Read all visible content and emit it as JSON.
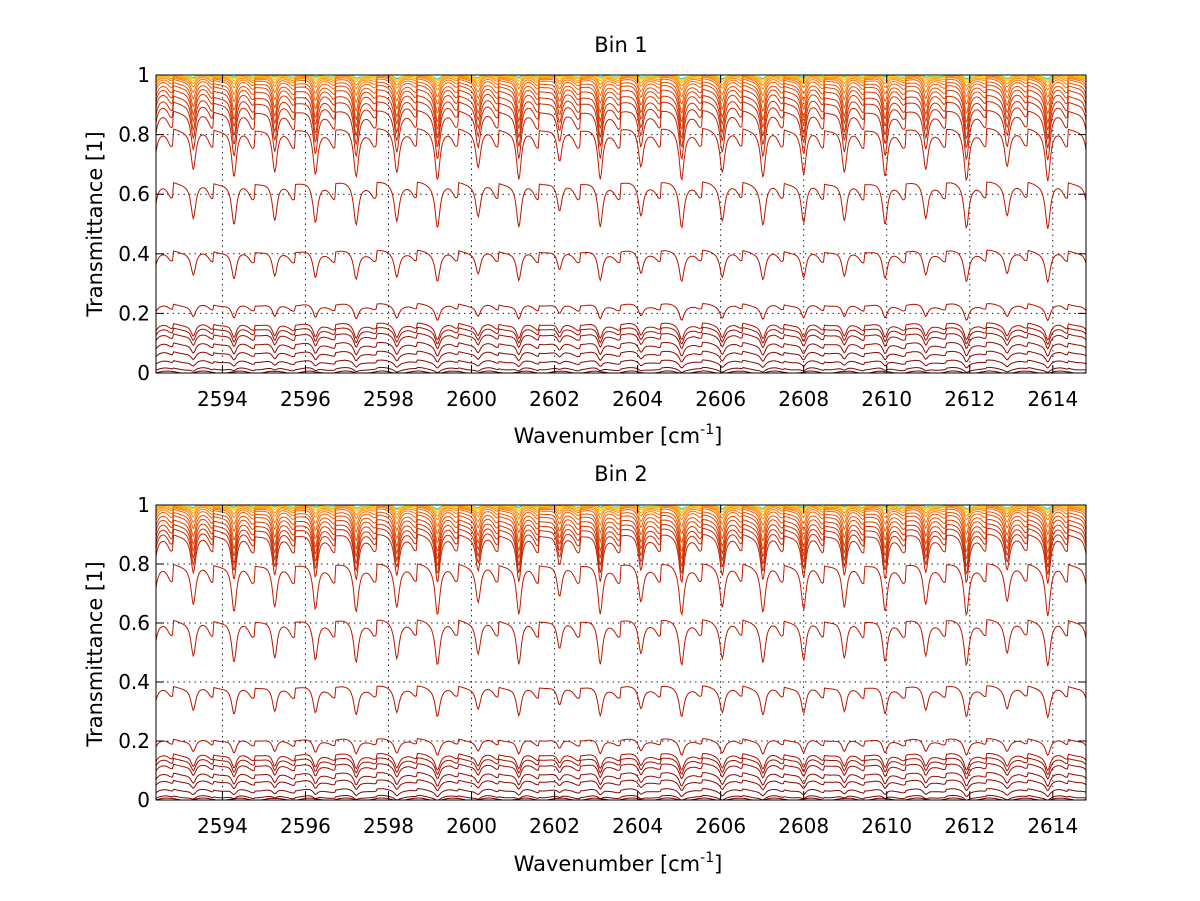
{
  "chart_data": [
    {
      "type": "line",
      "title": "Bin 1",
      "xlabel": "Wavenumber [cm",
      "xlabel_sup": "-1",
      "xlabel_close": "]",
      "ylabel": "Transmittance [1]",
      "xlim": [
        2592.4,
        2614.8
      ],
      "ylim": [
        0,
        1
      ],
      "grid": true,
      "x_ticks": [
        2594,
        2596,
        2598,
        2600,
        2602,
        2604,
        2606,
        2608,
        2610,
        2612,
        2614
      ],
      "x_tick_labels": [
        "2594",
        "2596",
        "2598",
        "2600",
        "2602",
        "2604",
        "2606",
        "2608",
        "2610",
        "2612",
        "2614"
      ],
      "y_ticks": [
        0,
        0.2,
        0.4,
        0.6,
        0.8,
        1
      ],
      "y_tick_labels": [
        "0",
        "0.2",
        "0.4",
        "0.6",
        "0.8",
        "1"
      ],
      "series_description": "Family of transmittance spectra; absorption line spacing approx. 0.98 cm^-1",
      "series": [
        {
          "name": "s01",
          "baseline": 1.0,
          "depth": 0.01,
          "color": "#00c8c8"
        },
        {
          "name": "s02",
          "baseline": 1.0,
          "depth": 0.015,
          "color": "#ffd200"
        },
        {
          "name": "s03",
          "baseline": 0.998,
          "depth": 0.02,
          "color": "#ffb400"
        },
        {
          "name": "s04",
          "baseline": 0.996,
          "depth": 0.03,
          "color": "#ff9600"
        },
        {
          "name": "s05",
          "baseline": 0.993,
          "depth": 0.04,
          "color": "#ff8200"
        },
        {
          "name": "s06",
          "baseline": 0.99,
          "depth": 0.06,
          "color": "#ff7000"
        },
        {
          "name": "s07",
          "baseline": 0.985,
          "depth": 0.08,
          "color": "#f06000"
        },
        {
          "name": "s08",
          "baseline": 0.975,
          "depth": 0.1,
          "color": "#e85000"
        },
        {
          "name": "s09",
          "baseline": 0.965,
          "depth": 0.12,
          "color": "#e04400"
        },
        {
          "name": "s10",
          "baseline": 0.95,
          "depth": 0.13,
          "color": "#d83800"
        },
        {
          "name": "s11",
          "baseline": 0.93,
          "depth": 0.14,
          "color": "#d03000"
        },
        {
          "name": "s12",
          "baseline": 0.91,
          "depth": 0.15,
          "color": "#c82800"
        },
        {
          "name": "s13",
          "baseline": 0.88,
          "depth": 0.16,
          "color": "#c02000"
        },
        {
          "name": "s14",
          "baseline": 0.82,
          "depth": 0.17,
          "color": "#c01a00"
        },
        {
          "name": "s15",
          "baseline": 0.64,
          "depth": 0.15,
          "color": "#b81800"
        },
        {
          "name": "s16",
          "baseline": 0.41,
          "depth": 0.1,
          "color": "#b41400"
        },
        {
          "name": "s17",
          "baseline": 0.23,
          "depth": 0.05,
          "color": "#b01200"
        },
        {
          "name": "s18",
          "baseline": 0.165,
          "depth": 0.05,
          "color": "#a81000"
        },
        {
          "name": "s19",
          "baseline": 0.15,
          "depth": 0.05,
          "color": "#a00e00"
        },
        {
          "name": "s20",
          "baseline": 0.13,
          "depth": 0.045,
          "color": "#980c00"
        },
        {
          "name": "s21",
          "baseline": 0.1,
          "depth": 0.04,
          "color": "#900a00"
        },
        {
          "name": "s22",
          "baseline": 0.07,
          "depth": 0.03,
          "color": "#880800"
        },
        {
          "name": "s23",
          "baseline": 0.04,
          "depth": 0.02,
          "color": "#800600"
        },
        {
          "name": "s24",
          "baseline": 0.015,
          "depth": 0.01,
          "color": "#780400"
        },
        {
          "name": "s25",
          "baseline": 0.003,
          "depth": 0.002,
          "color": "#700000"
        }
      ]
    },
    {
      "type": "line",
      "title": "Bin 2",
      "xlabel": "Wavenumber [cm",
      "xlabel_sup": "-1",
      "xlabel_close": "]",
      "ylabel": "Transmittance [1]",
      "xlim": [
        2592.4,
        2614.8
      ],
      "ylim": [
        0,
        1
      ],
      "grid": true,
      "x_ticks": [
        2594,
        2596,
        2598,
        2600,
        2602,
        2604,
        2606,
        2608,
        2610,
        2612,
        2614
      ],
      "x_tick_labels": [
        "2594",
        "2596",
        "2598",
        "2600",
        "2602",
        "2604",
        "2606",
        "2608",
        "2610",
        "2612",
        "2614"
      ],
      "y_ticks": [
        0,
        0.2,
        0.4,
        0.6,
        0.8,
        1
      ],
      "y_tick_labels": [
        "0",
        "0.2",
        "0.4",
        "0.6",
        "0.8",
        "1"
      ],
      "series_description": "Family of transmittance spectra; absorption line spacing approx. 0.98 cm^-1",
      "series": [
        {
          "name": "s01",
          "baseline": 1.0,
          "depth": 0.01,
          "color": "#00c8c8"
        },
        {
          "name": "s02",
          "baseline": 1.0,
          "depth": 0.015,
          "color": "#ffd200"
        },
        {
          "name": "s03",
          "baseline": 0.998,
          "depth": 0.02,
          "color": "#ffb400"
        },
        {
          "name": "s04",
          "baseline": 0.996,
          "depth": 0.03,
          "color": "#ff9600"
        },
        {
          "name": "s05",
          "baseline": 0.993,
          "depth": 0.04,
          "color": "#ff8200"
        },
        {
          "name": "s06",
          "baseline": 0.99,
          "depth": 0.06,
          "color": "#ff7000"
        },
        {
          "name": "s07",
          "baseline": 0.985,
          "depth": 0.08,
          "color": "#f06000"
        },
        {
          "name": "s08",
          "baseline": 0.975,
          "depth": 0.1,
          "color": "#e85000"
        },
        {
          "name": "s09",
          "baseline": 0.965,
          "depth": 0.12,
          "color": "#e04400"
        },
        {
          "name": "s10",
          "baseline": 0.95,
          "depth": 0.13,
          "color": "#d83800"
        },
        {
          "name": "s11",
          "baseline": 0.935,
          "depth": 0.14,
          "color": "#d03000"
        },
        {
          "name": "s12",
          "baseline": 0.92,
          "depth": 0.15,
          "color": "#c82800"
        },
        {
          "name": "s13",
          "baseline": 0.9,
          "depth": 0.16,
          "color": "#c02000"
        },
        {
          "name": "s14",
          "baseline": 0.8,
          "depth": 0.17,
          "color": "#c01a00"
        },
        {
          "name": "s15",
          "baseline": 0.61,
          "depth": 0.15,
          "color": "#b81800"
        },
        {
          "name": "s16",
          "baseline": 0.385,
          "depth": 0.1,
          "color": "#b41400"
        },
        {
          "name": "s17",
          "baseline": 0.205,
          "depth": 0.05,
          "color": "#b01200"
        },
        {
          "name": "s18",
          "baseline": 0.155,
          "depth": 0.05,
          "color": "#a81000"
        },
        {
          "name": "s19",
          "baseline": 0.14,
          "depth": 0.05,
          "color": "#a00e00"
        },
        {
          "name": "s20",
          "baseline": 0.12,
          "depth": 0.045,
          "color": "#980c00"
        },
        {
          "name": "s21",
          "baseline": 0.09,
          "depth": 0.04,
          "color": "#900a00"
        },
        {
          "name": "s22",
          "baseline": 0.065,
          "depth": 0.03,
          "color": "#880800"
        },
        {
          "name": "s23",
          "baseline": 0.035,
          "depth": 0.02,
          "color": "#800600"
        },
        {
          "name": "s24",
          "baseline": 0.012,
          "depth": 0.01,
          "color": "#780400"
        },
        {
          "name": "s25",
          "baseline": 0.003,
          "depth": 0.002,
          "color": "#700000"
        }
      ]
    }
  ]
}
